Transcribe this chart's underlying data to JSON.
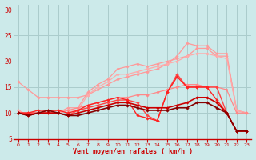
{
  "xlabel": "Vent moyen/en rafales ( km/h )",
  "background_color": "#cceaea",
  "grid_color": "#aacccc",
  "x": [
    0,
    1,
    2,
    3,
    4,
    5,
    6,
    7,
    8,
    9,
    10,
    11,
    12,
    13,
    14,
    15,
    16,
    17,
    18,
    19,
    20,
    21,
    22,
    23
  ],
  "series": [
    {
      "color": "#ff9999",
      "y": [
        16.0,
        14.5,
        13.0,
        13.0,
        13.0,
        13.0,
        13.0,
        13.5,
        14.5,
        15.5,
        16.5,
        17.0,
        17.5,
        18.0,
        18.5,
        19.5,
        21.0,
        23.5,
        23.0,
        23.0,
        21.5,
        21.5,
        10.5,
        10.0
      ],
      "linewidth": 0.9
    },
    {
      "color": "#ff9999",
      "y": [
        10.5,
        9.5,
        10.0,
        10.0,
        10.0,
        11.0,
        11.0,
        14.0,
        15.5,
        16.5,
        18.5,
        19.0,
        19.5,
        19.0,
        19.5,
        20.0,
        20.5,
        21.0,
        22.5,
        22.5,
        21.0,
        21.0,
        10.5,
        10.0
      ],
      "linewidth": 0.9
    },
    {
      "color": "#ffaaaa",
      "y": [
        10.5,
        9.5,
        10.0,
        10.0,
        10.0,
        10.5,
        10.5,
        13.5,
        15.0,
        16.0,
        17.5,
        17.5,
        18.0,
        18.5,
        19.0,
        19.5,
        20.0,
        21.0,
        21.5,
        21.5,
        21.0,
        20.5,
        10.5,
        10.0
      ],
      "linewidth": 0.9
    },
    {
      "color": "#ff8888",
      "y": [
        10.0,
        10.0,
        10.0,
        10.5,
        10.5,
        10.5,
        11.0,
        11.5,
        12.0,
        12.5,
        13.0,
        13.0,
        13.5,
        13.5,
        14.0,
        14.5,
        15.0,
        15.5,
        15.5,
        15.0,
        15.0,
        14.5,
        10.0,
        10.0
      ],
      "linewidth": 0.9
    },
    {
      "color": "#ff4444",
      "y": [
        10.0,
        10.0,
        10.0,
        10.0,
        10.0,
        9.5,
        10.5,
        11.0,
        11.5,
        12.0,
        12.5,
        12.5,
        12.0,
        9.5,
        8.5,
        14.0,
        17.5,
        15.0,
        15.0,
        15.0,
        15.0,
        10.0,
        6.5,
        6.5
      ],
      "linewidth": 1.0
    },
    {
      "color": "#ff2222",
      "y": [
        10.0,
        10.0,
        10.5,
        10.5,
        10.5,
        10.0,
        10.5,
        11.5,
        12.0,
        12.5,
        13.0,
        12.5,
        9.5,
        9.0,
        8.5,
        14.0,
        17.0,
        15.0,
        15.0,
        15.0,
        12.5,
        10.0,
        6.5,
        6.5
      ],
      "linewidth": 1.0
    },
    {
      "color": "#cc0000",
      "y": [
        10.0,
        9.5,
        10.0,
        10.0,
        10.0,
        9.5,
        10.0,
        10.5,
        11.0,
        11.5,
        12.0,
        12.0,
        11.5,
        11.0,
        11.0,
        11.0,
        11.5,
        12.0,
        13.0,
        13.0,
        12.0,
        10.0,
        6.5,
        6.5
      ],
      "linewidth": 1.2
    },
    {
      "color": "#880000",
      "y": [
        10.0,
        9.5,
        10.0,
        10.5,
        10.0,
        9.5,
        9.5,
        10.0,
        10.5,
        11.0,
        11.5,
        11.5,
        11.0,
        10.5,
        10.5,
        10.5,
        11.0,
        11.0,
        12.0,
        12.0,
        11.0,
        10.0,
        6.5,
        6.5
      ],
      "linewidth": 1.2
    }
  ],
  "ylim": [
    5,
    31
  ],
  "yticks": [
    5,
    10,
    15,
    20,
    25,
    30
  ],
  "xlim": [
    -0.5,
    23.5
  ],
  "spine_color": "#888888"
}
